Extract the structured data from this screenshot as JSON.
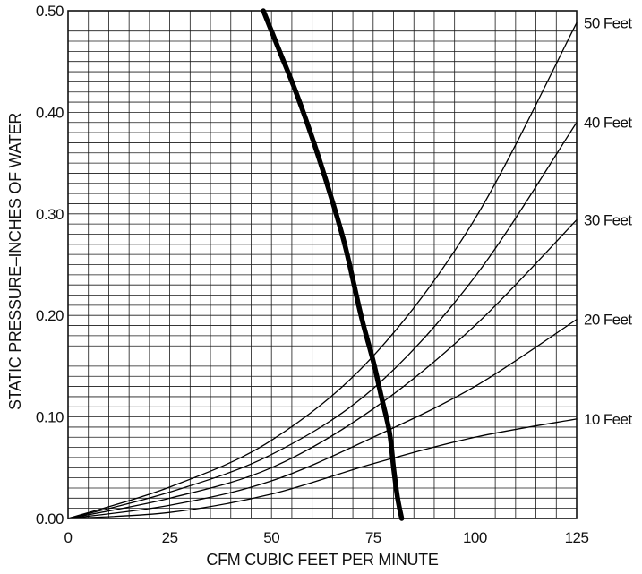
{
  "chart_data": {
    "type": "line",
    "title": "",
    "xlabel": "CFM CUBIC FEET PER MINUTE",
    "ylabel": "STATIC PRESSURE–INCHES OF WATER",
    "xlim": [
      0,
      125
    ],
    "ylim": [
      0,
      0.5
    ],
    "x_ticks": [
      "0",
      "25",
      "50",
      "75",
      "100",
      "125"
    ],
    "y_ticks": [
      "0.00",
      "0.10",
      "0.20",
      "0.30",
      "0.40",
      "0.50"
    ],
    "grid": true,
    "series": [
      {
        "name": "10 Feet",
        "x": [
          0,
          25,
          50,
          75,
          100,
          125
        ],
        "y": [
          0,
          0.006,
          0.024,
          0.054,
          0.08,
          0.098
        ]
      },
      {
        "name": "20 Feet",
        "x": [
          0,
          25,
          50,
          75,
          100,
          125
        ],
        "y": [
          0,
          0.013,
          0.037,
          0.08,
          0.13,
          0.196
        ]
      },
      {
        "name": "30 Feet",
        "x": [
          0,
          25,
          50,
          75,
          100,
          125
        ],
        "y": [
          0,
          0.02,
          0.05,
          0.108,
          0.19,
          0.294
        ]
      },
      {
        "name": "40 Feet",
        "x": [
          0,
          25,
          50,
          75,
          100,
          125
        ],
        "y": [
          0,
          0.026,
          0.063,
          0.128,
          0.238,
          0.39
        ]
      },
      {
        "name": "50 Feet",
        "x": [
          0,
          25,
          50,
          75,
          100,
          125
        ],
        "y": [
          0,
          0.031,
          0.077,
          0.16,
          0.295,
          0.488
        ]
      },
      {
        "name": "",
        "x": [
          48,
          52,
          56,
          60,
          64,
          68,
          72,
          75,
          77,
          79,
          80,
          81,
          82
        ],
        "y": [
          0.5,
          0.46,
          0.42,
          0.375,
          0.325,
          0.27,
          0.2,
          0.155,
          0.12,
          0.085,
          0.05,
          0.02,
          0
        ]
      }
    ]
  }
}
